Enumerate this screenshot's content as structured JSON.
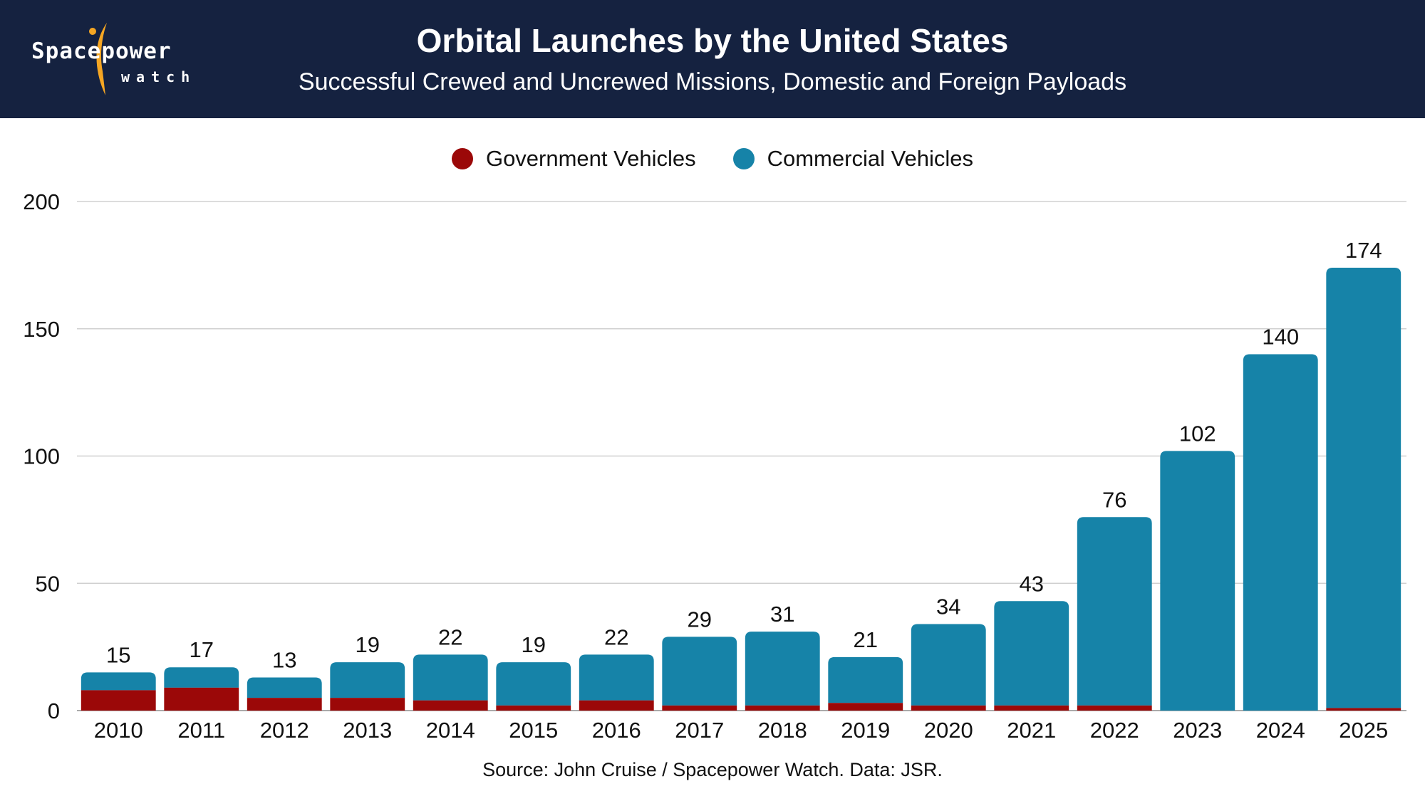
{
  "header": {
    "logo_text": "Spacepower",
    "logo_subtext": "watch",
    "title": "Orbital Launches by the United States",
    "subtitle": "Successful Crewed and Uncrewed Missions, Domestic and Foreign Payloads"
  },
  "colors": {
    "header_bg": "#152240",
    "government": "#9b0808",
    "commercial": "#1683a8",
    "logo_accent": "#f5a623",
    "grid": "#d0d0d0"
  },
  "legend": [
    {
      "label": "Government Vehicles",
      "color": "#9b0808"
    },
    {
      "label": "Commercial Vehicles",
      "color": "#1683a8"
    }
  ],
  "source": "Source: John Cruise / Spacepower Watch. Data: JSR.",
  "chart_data": {
    "type": "bar",
    "stacked": true,
    "title": "Orbital Launches by the United States",
    "subtitle": "Successful Crewed and Uncrewed Missions, Domestic and Foreign Payloads",
    "xlabel": "",
    "ylabel": "",
    "ylim": [
      0,
      200
    ],
    "yticks": [
      0,
      50,
      100,
      150,
      200
    ],
    "grid": true,
    "legend_position": "top-center",
    "categories": [
      "2010",
      "2011",
      "2012",
      "2013",
      "2014",
      "2015",
      "2016",
      "2017",
      "2018",
      "2019",
      "2020",
      "2021",
      "2022",
      "2023",
      "2024",
      "2025"
    ],
    "series": [
      {
        "name": "Government Vehicles",
        "values": [
          8,
          9,
          5,
          5,
          4,
          2,
          4,
          2,
          2,
          3,
          2,
          2,
          2,
          0,
          0,
          1
        ]
      },
      {
        "name": "Commercial Vehicles",
        "values": [
          7,
          8,
          8,
          14,
          18,
          17,
          18,
          27,
          29,
          18,
          32,
          41,
          74,
          102,
          140,
          173
        ]
      }
    ],
    "totals": [
      15,
      17,
      13,
      19,
      22,
      19,
      22,
      29,
      31,
      21,
      34,
      43,
      76,
      102,
      140,
      174
    ]
  }
}
